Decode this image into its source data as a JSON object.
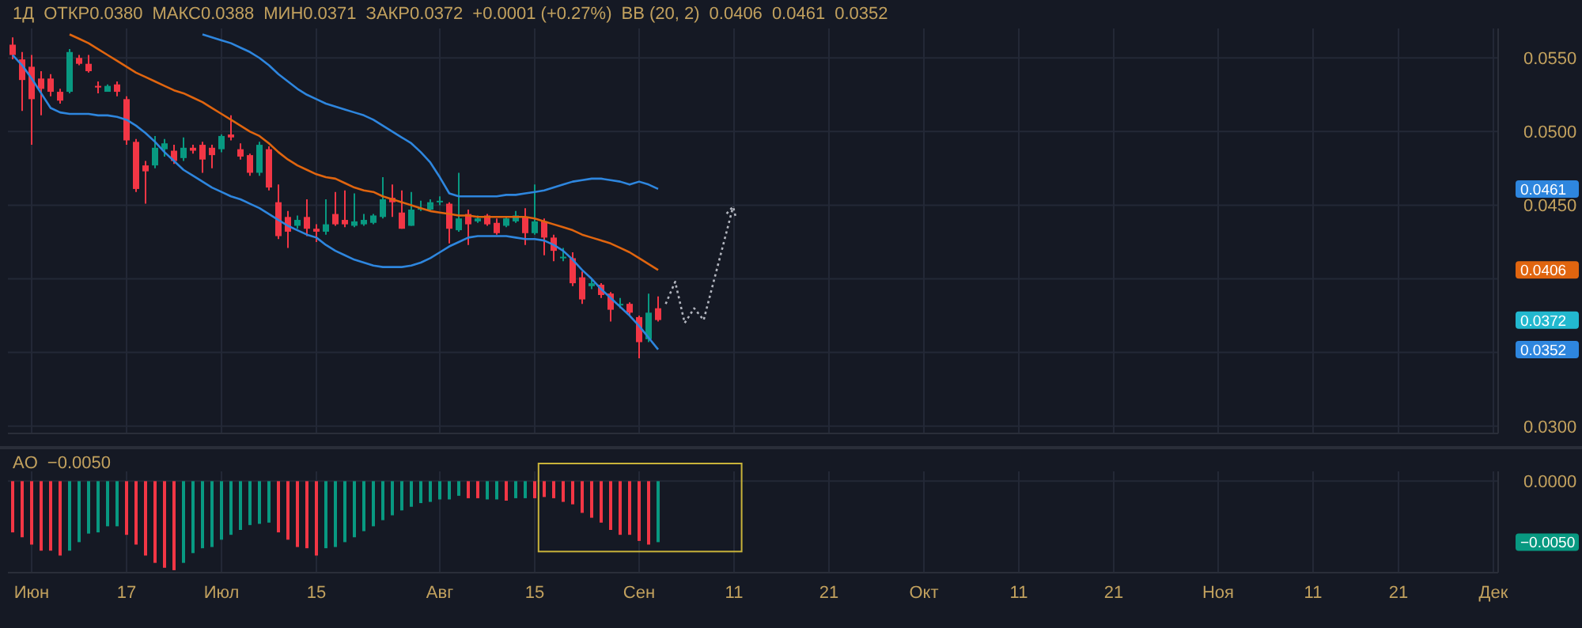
{
  "chart_data": [
    {
      "type": "candlestick",
      "categories": [
        null,
        null,
        null,
        null,
        null,
        null,
        null,
        null,
        null,
        null,
        null,
        null,
        null,
        null,
        null,
        null,
        null,
        null,
        null,
        null,
        null,
        null,
        null,
        null,
        null,
        null,
        null,
        null,
        null,
        null,
        null,
        null,
        null,
        null,
        null,
        null,
        null,
        null,
        null,
        null,
        null,
        null,
        null,
        null,
        null,
        null,
        null,
        null,
        null,
        null,
        null,
        null,
        null,
        null,
        null,
        null,
        null,
        null,
        null,
        null,
        null,
        null,
        null,
        null,
        null,
        null,
        null,
        null,
        null,
        null,
        null,
        null,
        null,
        null,
        null,
        null,
        null,
        null,
        null,
        null,
        null,
        null,
        null,
        null,
        null,
        null,
        null,
        null,
        null,
        null,
        null,
        null,
        null,
        null,
        null,
        null,
        null,
        null,
        null,
        null,
        null,
        null,
        null,
        null,
        null,
        null,
        null,
        null,
        null,
        null,
        null,
        null,
        null,
        null,
        null,
        null,
        null,
        null,
        null,
        null,
        null,
        null,
        null,
        null,
        null,
        null,
        null,
        null,
        null,
        null,
        null,
        null,
        null,
        null,
        null,
        null,
        null,
        null,
        null,
        null,
        null,
        null,
        null,
        null,
        null,
        null,
        null,
        null,
        null,
        null,
        null,
        null,
        null,
        null,
        null,
        null,
        null
      ],
      "ohlc": [
        [
          0.0559,
          0.0564,
          0.0549,
          0.0552
        ],
        [
          0.0549,
          0.0554,
          0.0514,
          0.0535
        ],
        [
          0.0544,
          0.0552,
          0.0491,
          0.0522
        ],
        [
          0.0536,
          0.0541,
          0.0511,
          0.0529
        ],
        [
          0.0536,
          0.0539,
          0.0524,
          0.0527
        ],
        [
          0.0527,
          0.0529,
          0.0519,
          0.0521
        ],
        [
          0.0527,
          0.0556,
          0.0526,
          0.0554
        ],
        [
          0.055,
          0.0552,
          0.0545,
          0.0546
        ],
        [
          0.0546,
          0.0552,
          0.054,
          0.0541
        ],
        [
          0.0531,
          0.0534,
          0.0526,
          0.053
        ],
        [
          0.0527,
          0.0532,
          0.0527,
          0.0531
        ],
        [
          0.0532,
          0.0534,
          0.0524,
          0.0527
        ],
        [
          0.0522,
          0.0524,
          0.0491,
          0.0494
        ],
        [
          0.0493,
          0.0495,
          0.0459,
          0.0461
        ],
        [
          0.0477,
          0.048,
          0.0451,
          0.0473
        ],
        [
          0.0477,
          0.0497,
          0.0475,
          0.0489
        ],
        [
          0.0488,
          0.0495,
          0.0483,
          0.0492
        ],
        [
          0.0487,
          0.0491,
          0.0478,
          0.048
        ],
        [
          0.0482,
          0.0496,
          0.048,
          0.0489
        ],
        [
          0.0489,
          0.0491,
          0.0485,
          0.0487
        ],
        [
          0.0491,
          0.0493,
          0.0472,
          0.0481
        ],
        [
          0.0489,
          0.0491,
          0.0475,
          0.0484
        ],
        [
          0.0488,
          0.0498,
          0.0486,
          0.0497
        ],
        [
          0.0498,
          0.0511,
          0.0494,
          0.0496
        ],
        [
          0.0488,
          0.0492,
          0.0481,
          0.0483
        ],
        [
          0.0484,
          0.0485,
          0.047,
          0.0472
        ],
        [
          0.0472,
          0.0493,
          0.047,
          0.0491
        ],
        [
          0.0488,
          0.049,
          0.046,
          0.0462
        ],
        [
          0.0452,
          0.0464,
          0.0427,
          0.0429
        ],
        [
          0.0442,
          0.0446,
          0.0421,
          0.0432
        ],
        [
          0.0436,
          0.0443,
          0.0434,
          0.044
        ],
        [
          0.0442,
          0.0454,
          0.0429,
          0.0434
        ],
        [
          0.0434,
          0.0437,
          0.0425,
          0.0432
        ],
        [
          0.0432,
          0.0454,
          0.043,
          0.0437
        ],
        [
          0.0444,
          0.0459,
          0.0436,
          0.0437
        ],
        [
          0.044,
          0.046,
          0.0435,
          0.0437
        ],
        [
          0.0436,
          0.0458,
          0.0435,
          0.0439
        ],
        [
          0.0437,
          0.0444,
          0.0436,
          0.044
        ],
        [
          0.0438,
          0.0444,
          0.0437,
          0.0443
        ],
        [
          0.0442,
          0.0469,
          0.0441,
          0.0454
        ],
        [
          0.0455,
          0.0464,
          0.0442,
          0.0452
        ],
        [
          0.0445,
          0.046,
          0.0434,
          0.0434
        ],
        [
          0.0436,
          0.0459,
          0.0436,
          0.0447
        ],
        [
          0.0447,
          0.0453,
          0.0446,
          0.0448
        ],
        [
          0.0447,
          0.0454,
          0.0446,
          0.0452
        ],
        [
          0.0452,
          0.0456,
          0.045,
          0.0453
        ],
        [
          0.0451,
          0.0452,
          0.0424,
          0.0434
        ],
        [
          0.0433,
          0.0472,
          0.0432,
          0.0441
        ],
        [
          0.0444,
          0.0447,
          0.0423,
          0.0437
        ],
        [
          0.0439,
          0.0443,
          0.0438,
          0.0441
        ],
        [
          0.0443,
          0.0444,
          0.0436,
          0.0437
        ],
        [
          0.0438,
          0.0441,
          0.043,
          0.0431
        ],
        [
          0.0436,
          0.0442,
          0.0435,
          0.0441
        ],
        [
          0.0439,
          0.0446,
          0.0438,
          0.0443
        ],
        [
          0.0442,
          0.0448,
          0.0423,
          0.0431
        ],
        [
          0.0431,
          0.0464,
          0.043,
          0.0439
        ],
        [
          0.0439,
          0.0441,
          0.0416,
          0.0428
        ],
        [
          0.0428,
          0.043,
          0.0412,
          0.0419
        ],
        [
          0.0414,
          0.0421,
          0.0412,
          0.0415
        ],
        [
          0.0414,
          0.0418,
          0.0395,
          0.0397
        ],
        [
          0.0401,
          0.0405,
          0.0383,
          0.0386
        ],
        [
          0.0395,
          0.04,
          0.0393,
          0.0397
        ],
        [
          0.0396,
          0.0397,
          0.0387,
          0.0389
        ],
        [
          0.039,
          0.0391,
          0.0371,
          0.0379
        ],
        [
          0.0382,
          0.0387,
          0.038,
          0.0383
        ],
        [
          0.0383,
          0.0384,
          0.0375,
          0.0377
        ],
        [
          0.0374,
          0.0375,
          0.0346,
          0.0357
        ],
        [
          0.0359,
          0.039,
          0.0357,
          0.0377
        ],
        [
          0.038,
          0.0388,
          0.0371,
          0.0372
        ],
        null,
        null,
        null,
        null,
        null,
        null,
        null,
        null,
        null,
        null,
        null,
        null,
        null,
        null,
        null,
        null,
        null,
        null,
        null,
        null,
        null,
        null,
        null,
        null,
        null,
        null,
        null,
        null,
        null,
        null,
        null,
        null,
        null,
        null,
        null,
        null,
        null,
        null,
        null,
        null,
        null,
        null,
        null,
        null,
        null,
        null,
        null,
        null,
        null,
        null,
        null,
        null,
        null,
        null,
        null,
        null,
        null,
        null,
        null,
        null,
        null,
        null,
        null,
        null,
        null,
        null,
        null,
        null,
        null,
        null,
        null,
        null,
        null,
        null,
        null,
        null,
        null,
        null,
        null,
        null,
        null,
        null,
        null,
        null,
        null,
        null,
        null,
        null
      ],
      "colors": [
        "#f23645",
        "#f23645",
        "#f23645",
        "#f23645",
        "#f23645",
        "#f23645",
        "#089981",
        "#f23645",
        "#f23645",
        "#f23645",
        "#089981",
        "#f23645",
        "#f23645",
        "#f23645",
        "#f23645",
        "#089981",
        "#089981",
        "#f23645",
        "#089981",
        "#f23645",
        "#f23645",
        "#f23645",
        "#089981",
        "#f23645",
        "#f23645",
        "#f23645",
        "#089981",
        "#f23645",
        "#f23645",
        "#f23645",
        "#089981",
        "#f23645",
        "#f23645",
        "#089981",
        "#f23645",
        "#f23645",
        "#089981",
        "#089981",
        "#089981",
        "#089981",
        "#f23645",
        "#f23645",
        "#089981",
        "#089981",
        "#089981",
        "#089981",
        "#f23645",
        "#089981",
        "#f23645",
        "#089981",
        "#f23645",
        "#f23645",
        "#089981",
        "#089981",
        "#f23645",
        "#089981",
        "#f23645",
        "#f23645",
        "#089981",
        "#f23645",
        "#f23645",
        "#089981",
        "#f23645",
        "#f23645",
        "#089981",
        "#f23645",
        "#f23645",
        "#089981",
        "#f23645",
        null,
        null,
        null,
        null,
        null,
        null,
        null,
        null,
        null,
        null,
        null,
        null,
        null,
        null,
        null,
        null,
        null,
        null,
        null,
        null,
        null,
        null,
        null,
        null,
        null,
        null,
        null,
        null,
        null,
        null,
        null,
        null,
        null,
        null,
        null,
        null,
        null,
        null,
        null,
        null,
        null,
        null,
        null,
        null,
        null,
        null,
        null,
        null,
        null,
        null,
        null,
        null,
        null,
        null,
        null,
        null,
        null,
        null,
        null,
        null,
        null,
        null,
        null,
        null,
        null,
        null,
        null,
        null,
        null,
        null,
        null,
        null,
        null,
        null,
        null,
        null,
        null,
        null,
        null,
        null,
        null,
        null,
        null,
        null,
        null,
        null,
        null,
        null
      ],
      "series": [
        {
          "type": "line",
          "color": "#2e86de",
          "values": [
            null,
            null,
            null,
            null,
            null,
            null,
            null,
            null,
            null,
            null,
            null,
            null,
            null,
            null,
            null,
            null,
            null,
            null,
            null,
            null,
            0.0566,
            0.0564,
            0.0562,
            0.056,
            0.0557,
            0.0554,
            0.055,
            0.0545,
            0.0539,
            0.0534,
            0.0529,
            0.0525,
            0.0522,
            0.0519,
            0.0517,
            0.0515,
            0.0513,
            0.0511,
            0.0508,
            0.0504,
            0.05,
            0.0496,
            0.0492,
            0.0486,
            0.0479,
            0.0469,
            0.0458,
            0.0456,
            0.0456,
            0.0456,
            0.0456,
            0.0456,
            0.0457,
            0.0457,
            0.0458,
            0.0459,
            0.046,
            0.0462,
            0.0464,
            0.0466,
            0.0467,
            0.0468,
            0.0468,
            0.0467,
            0.0466,
            0.0464,
            0.0466,
            0.0464,
            0.0461,
            null,
            null,
            null,
            null,
            null,
            null,
            null,
            null,
            null,
            null,
            null,
            null,
            null,
            null,
            null,
            null,
            null,
            null,
            null,
            null,
            null,
            null,
            null,
            null,
            null,
            null,
            null,
            null,
            null,
            null,
            null,
            null,
            null,
            null,
            null,
            null,
            null,
            null,
            null,
            null,
            null,
            null,
            null,
            null,
            null,
            null,
            null,
            null,
            null,
            null,
            null,
            null,
            null,
            null,
            null,
            null,
            null,
            null,
            null,
            null,
            null,
            null,
            null,
            null,
            null,
            null,
            null,
            null,
            null,
            null,
            null,
            null,
            null,
            null,
            null,
            null,
            null,
            null,
            null,
            null,
            null,
            null,
            null,
            null,
            null,
            null,
            null,
            null
          ]
        },
        {
          "type": "line",
          "color": "#e0650f",
          "values": [
            null,
            null,
            null,
            null,
            null,
            null,
            0.0566,
            0.0563,
            0.056,
            0.0556,
            0.0552,
            0.0548,
            0.0544,
            0.054,
            0.0537,
            0.0534,
            0.0531,
            0.0528,
            0.0526,
            0.0523,
            0.052,
            0.0516,
            0.0512,
            0.0508,
            0.0504,
            0.05,
            0.0497,
            0.0492,
            0.0486,
            0.0481,
            0.0477,
            0.0474,
            0.0471,
            0.0469,
            0.0468,
            0.0465,
            0.0462,
            0.046,
            0.0459,
            0.0456,
            0.0454,
            0.0452,
            0.045,
            0.0448,
            0.0446,
            0.0445,
            0.0444,
            0.0443,
            0.0443,
            0.0442,
            0.0442,
            0.0442,
            0.0442,
            0.0442,
            0.0442,
            0.0441,
            0.0439,
            0.0437,
            0.0435,
            0.0433,
            0.043,
            0.0428,
            0.0426,
            0.0424,
            0.0421,
            0.0418,
            0.0414,
            0.041,
            0.0406,
            null,
            null,
            null,
            null,
            null,
            null,
            null,
            null,
            null,
            null,
            null,
            null,
            null,
            null,
            null,
            null,
            null,
            null,
            null,
            null,
            null,
            null,
            null,
            null,
            null,
            null,
            null,
            null,
            null,
            null,
            null,
            null,
            null,
            null,
            null,
            null,
            null,
            null,
            null,
            null,
            null,
            null,
            null,
            null,
            null,
            null,
            null,
            null,
            null,
            null,
            null,
            null,
            null,
            null,
            null,
            null,
            null,
            null,
            null,
            null,
            null,
            null,
            null,
            null,
            null,
            null,
            null,
            null,
            null,
            null,
            null,
            null,
            null,
            null,
            null,
            null,
            null,
            null,
            null,
            null,
            null,
            null,
            null,
            null,
            null,
            null,
            null,
            null
          ]
        },
        {
          "type": "line",
          "color": "#2e86de",
          "values": [
            0.0552,
            0.0545,
            0.0536,
            0.0526,
            0.0516,
            0.0513,
            0.0512,
            0.0512,
            0.0512,
            0.0511,
            0.0511,
            0.051,
            0.0508,
            0.0504,
            0.0499,
            0.0493,
            0.0486,
            0.048,
            0.0474,
            0.047,
            0.0466,
            0.0462,
            0.0459,
            0.0456,
            0.0454,
            0.0451,
            0.0448,
            0.0444,
            0.044,
            0.0436,
            0.0433,
            0.043,
            0.0428,
            0.0423,
            0.0419,
            0.0416,
            0.0413,
            0.0411,
            0.0409,
            0.0408,
            0.0408,
            0.0408,
            0.0409,
            0.0411,
            0.0414,
            0.0418,
            0.0422,
            0.0425,
            0.0428,
            0.0429,
            0.0429,
            0.0429,
            0.0429,
            0.0428,
            0.0427,
            0.0427,
            0.0426,
            0.0423,
            0.0419,
            0.0413,
            0.0406,
            0.04,
            0.0393,
            0.0387,
            0.0381,
            0.0375,
            0.0368,
            0.036,
            0.0352,
            null,
            null,
            null,
            null,
            null,
            null,
            null,
            null,
            null,
            null,
            null,
            null,
            null,
            null,
            null,
            null,
            null,
            null,
            null,
            null,
            null,
            null,
            null,
            null,
            null,
            null,
            null,
            null,
            null,
            null,
            null,
            null,
            null,
            null,
            null,
            null,
            null,
            null,
            null,
            null,
            null,
            null,
            null,
            null,
            null,
            null,
            null,
            null,
            null,
            null,
            null,
            null,
            null,
            null,
            null,
            null,
            null,
            null,
            null,
            null,
            null,
            null,
            null,
            null,
            null,
            null,
            null,
            null,
            null,
            null,
            null,
            null,
            null,
            null,
            null,
            null,
            null,
            null,
            null,
            null,
            null,
            null,
            null,
            null,
            null,
            null,
            null,
            null
          ]
        }
      ],
      "ylim": [
        0.0295,
        0.057
      ],
      "yticks": [
        {
          "value": 0.03,
          "label": "0.0300"
        },
        {
          "value": 0.035,
          "label": null
        },
        {
          "value": 0.0352,
          "label": "0.0352"
        },
        {
          "value": 0.0372,
          "label": "0.0372"
        },
        {
          "value": 0.04,
          "label": null
        },
        {
          "value": 0.0406,
          "label": "0.0406"
        },
        {
          "value": 0.045,
          "label": "0.0450"
        },
        {
          "value": 0.0461,
          "label": "0.0461"
        },
        {
          "value": 0.05,
          "label": "0.0500"
        },
        {
          "value": 0.055,
          "label": "0.0550"
        }
      ],
      "tick_labels": "y",
      "grid": true,
      "annotations": [
        "1Д",
        "ОТКР0.0380",
        "МАКС0.0388",
        "МИН0.0371",
        "ЗАКР0.0372",
        "+0.0001 (+0.27%)",
        "BB (20, 2)",
        "0.0406",
        "0.0461",
        "0.0352"
      ]
    },
    {
      "type": "bar",
      "categories": [
        null,
        null,
        "Июн",
        null,
        null,
        null,
        null,
        null,
        null,
        null,
        null,
        null,
        "17",
        null,
        null,
        null,
        null,
        null,
        null,
        null,
        null,
        null,
        "Июл",
        null,
        null,
        null,
        null,
        null,
        null,
        null,
        null,
        null,
        "15",
        null,
        null,
        null,
        null,
        null,
        null,
        null,
        null,
        null,
        null,
        null,
        null,
        "Авг",
        null,
        null,
        null,
        null,
        null,
        null,
        null,
        null,
        null,
        "15",
        null,
        null,
        null,
        null,
        null,
        null,
        null,
        null,
        null,
        null,
        "Сен",
        null,
        null,
        null,
        null,
        null,
        null,
        null,
        null,
        null,
        "11",
        null,
        null,
        null,
        null,
        null,
        null,
        null,
        null,
        null,
        "21",
        null,
        null,
        null,
        null,
        null,
        null,
        null,
        null,
        null,
        "Окт",
        null,
        null,
        null,
        null,
        null,
        null,
        null,
        null,
        null,
        "11",
        null,
        null,
        null,
        null,
        null,
        null,
        null,
        null,
        null,
        "21",
        null,
        null,
        null,
        null,
        null,
        null,
        null,
        null,
        null,
        null,
        "Ноя",
        null,
        null,
        null,
        null,
        null,
        null,
        null,
        null,
        null,
        "11",
        null,
        null,
        null,
        null,
        null,
        null,
        null,
        null,
        "21",
        null,
        null,
        null,
        null,
        null,
        null,
        null,
        null,
        null,
        "Дек"
      ],
      "values": [
        -0.0042,
        -0.0046,
        -0.0052,
        -0.0057,
        -0.0057,
        -0.0061,
        -0.0057,
        -0.005,
        -0.0043,
        -0.0042,
        -0.0037,
        -0.0037,
        -0.0044,
        -0.0052,
        -0.0061,
        -0.0067,
        -0.0071,
        -0.0073,
        -0.0067,
        -0.0059,
        -0.0055,
        -0.0054,
        -0.0048,
        -0.0044,
        -0.004,
        -0.0036,
        -0.0035,
        -0.0034,
        -0.0042,
        -0.0048,
        -0.0054,
        -0.0055,
        -0.0061,
        -0.0055,
        -0.0054,
        -0.005,
        -0.0046,
        -0.0041,
        -0.0037,
        -0.0032,
        -0.0028,
        -0.0024,
        -0.0021,
        -0.0018,
        -0.0017,
        -0.0015,
        -0.0015,
        -0.0012,
        -0.0014,
        -0.0014,
        -0.0015,
        -0.0015,
        -0.0016,
        -0.0014,
        -0.0014,
        -0.0014,
        -0.0013,
        -0.0014,
        -0.0017,
        -0.0019,
        -0.0026,
        -0.003,
        -0.0034,
        -0.004,
        -0.0044,
        -0.0044,
        -0.0049,
        -0.0052,
        -0.005,
        null,
        null,
        null,
        null,
        null,
        null,
        null,
        null,
        null,
        null,
        null,
        null,
        null,
        null,
        null,
        null,
        null,
        null,
        null,
        null,
        null,
        null,
        null,
        null,
        null,
        null,
        null,
        null,
        null,
        null,
        null,
        null,
        null,
        null,
        null,
        null,
        null,
        null,
        null,
        null,
        null,
        null,
        null,
        null,
        null,
        null,
        null,
        null,
        null,
        null,
        null,
        null,
        null,
        null,
        null,
        null,
        null,
        null,
        null,
        null,
        null,
        null,
        null,
        null,
        null,
        null,
        null,
        null,
        null,
        null,
        null,
        null,
        null,
        null,
        null,
        null,
        null,
        null,
        null,
        null,
        null,
        null,
        null,
        null,
        null,
        null,
        null,
        null
      ],
      "colors": [
        "#f23645",
        "#f23645",
        "#f23645",
        "#f23645",
        "#f23645",
        "#f23645",
        "#089981",
        "#089981",
        "#089981",
        "#089981",
        "#089981",
        "#089981",
        "#f23645",
        "#f23645",
        "#f23645",
        "#f23645",
        "#f23645",
        "#f23645",
        "#089981",
        "#089981",
        "#089981",
        "#089981",
        "#089981",
        "#089981",
        "#089981",
        "#089981",
        "#089981",
        "#089981",
        "#f23645",
        "#f23645",
        "#f23645",
        "#f23645",
        "#f23645",
        "#089981",
        "#089981",
        "#089981",
        "#089981",
        "#089981",
        "#089981",
        "#089981",
        "#089981",
        "#089981",
        "#089981",
        "#089981",
        "#089981",
        "#089981",
        "#089981",
        "#089981",
        "#f23645",
        "#f23645",
        "#089981",
        "#089981",
        "#f23645",
        "#089981",
        "#089981",
        "#f23645",
        "#f23645",
        "#f23645",
        "#f23645",
        "#f23645",
        "#f23645",
        "#f23645",
        "#f23645",
        "#f23645",
        "#f23645",
        "#f23645",
        "#f23645",
        "#f23645",
        "#089981",
        null,
        null,
        null,
        null,
        null,
        null,
        null,
        null,
        null,
        null,
        null,
        null,
        null,
        null,
        null,
        null,
        null,
        null,
        null,
        null,
        null,
        null,
        null,
        null,
        null,
        null,
        null,
        null,
        null,
        null,
        null,
        null,
        null,
        null,
        null,
        null,
        null,
        null,
        null,
        null,
        null,
        null,
        null,
        null,
        null,
        null,
        null,
        null,
        null,
        null,
        null,
        null,
        null,
        null,
        null,
        null,
        null,
        null,
        null,
        null,
        null,
        null,
        null,
        null,
        null,
        null,
        null,
        null,
        null,
        null,
        null,
        null,
        null,
        null,
        null,
        null,
        null,
        null,
        null,
        null,
        null,
        null,
        null,
        null,
        null,
        null,
        null,
        null
      ],
      "ylim": [
        -0.0075,
        0.0008
      ],
      "yticks": [
        {
          "value": 0,
          "label": "0.0000"
        },
        {
          "value": -0.005,
          "label": "−0.0050"
        }
      ],
      "grid": true,
      "annotations": [
        "AO",
        "−0.0050"
      ]
    }
  ]
}
